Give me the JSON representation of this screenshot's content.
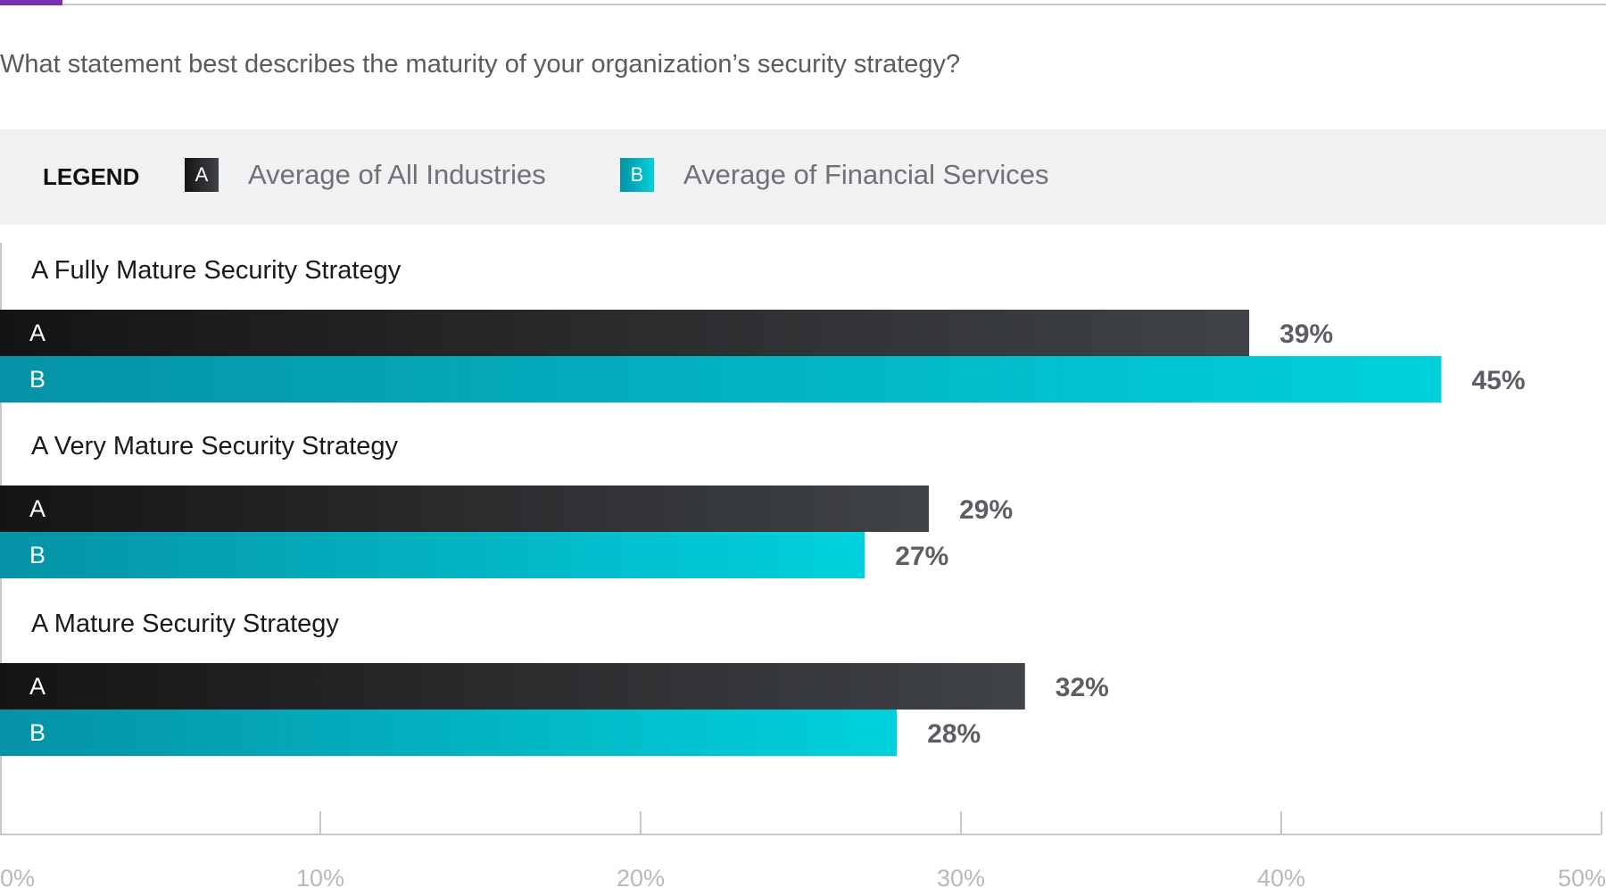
{
  "question": "What statement best describes the maturity of your organization’s security strategy?",
  "legend": {
    "title": "LEGEND",
    "items": [
      {
        "letter": "A",
        "label": "Average of All Industries"
      },
      {
        "letter": "B",
        "label": "Average of Financial Services"
      }
    ]
  },
  "colors": {
    "A_start": "#141414",
    "A_end": "#404347",
    "B_start": "#0592a6",
    "B_end": "#00d1dc",
    "value_text": "#5b5f63",
    "axis_text": "#b8b9bb",
    "axis_line": "#c8c8cc",
    "accent": "#7a2fb0",
    "legend_bg": "#f0f1f3"
  },
  "chart_data": {
    "type": "bar",
    "orientation": "horizontal",
    "title": "What statement best describes the maturity of your organization’s security strategy?",
    "categories": [
      "A Fully Mature Security Strategy",
      "A Very Mature Security Strategy",
      "A Mature Security Strategy"
    ],
    "series": [
      {
        "letter": "A",
        "name": "Average of All Industries",
        "values": [
          39,
          29,
          32
        ],
        "labels": [
          "39%",
          "29%",
          "32%"
        ]
      },
      {
        "letter": "B",
        "name": "Average of Financial Services",
        "values": [
          45,
          27,
          28
        ],
        "labels": [
          "45%",
          "27%",
          "28%"
        ]
      }
    ],
    "xlim": [
      0,
      50
    ],
    "xticks": [
      0,
      10,
      20,
      30,
      40,
      50
    ],
    "xtick_labels": [
      "0%",
      "10%",
      "20%",
      "30%",
      "40%",
      "50%"
    ],
    "legend_position": "top",
    "grid": false
  }
}
